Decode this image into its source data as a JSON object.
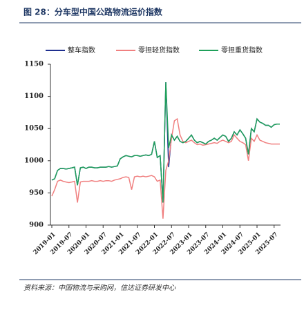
{
  "chart_data": {
    "type": "line",
    "title": "图 28：分车型中国公路物流运价指数",
    "source": "资料来源：中国物流与采购网，信达证券研发中心",
    "categories": [
      "2019-01",
      null,
      null,
      null,
      null,
      null,
      "2019-07",
      null,
      null,
      null,
      null,
      null,
      "2020-01",
      null,
      null,
      null,
      null,
      null,
      "2020-07",
      null,
      null,
      null,
      null,
      null,
      "2021-01",
      null,
      null,
      null,
      null,
      null,
      "2021-07",
      null,
      null,
      null,
      null,
      null,
      "2022-01",
      null,
      null,
      null,
      null,
      null,
      "2022-07",
      null,
      null,
      null,
      null,
      null,
      "2023-01",
      null,
      null,
      null,
      null,
      null,
      "2023-07",
      null,
      null,
      null,
      null,
      null,
      "2024-01",
      null,
      null,
      null,
      null,
      null,
      "2024-07",
      null,
      null,
      null,
      null,
      null,
      "2025-01",
      null,
      null,
      null,
      null,
      null,
      "2025-07",
      null,
      null
    ],
    "series": [
      {
        "name": "整车指数",
        "color": "#1f2f8f",
        "values": [
          970,
          972,
          985,
          988,
          988,
          987,
          988,
          989,
          990,
          962,
          989,
          990,
          988,
          990,
          990,
          989,
          989,
          990,
          990,
          990,
          991,
          990,
          991,
          992,
          1003,
          1006,
          1008,
          1007,
          1006,
          1008,
          1008,
          1007,
          1008,
          1009,
          1008,
          1010,
          1030,
          1005,
          1008,
          935,
          1122,
          990,
          1040,
          1032,
          1038,
          1030,
          1028,
          1030,
          1035,
          1040,
          1032,
          1028,
          1030,
          1028,
          1026,
          1030,
          1032,
          1035,
          1032,
          1036,
          1040,
          1038,
          1030,
          1035,
          1045,
          1040,
          1048,
          1042,
          1035,
          1010,
          1050,
          1045,
          1065,
          1060,
          1058,
          1055,
          1055,
          1052,
          1056,
          1057,
          1057
        ]
      },
      {
        "name": "零担轻货指数",
        "color": "#f08080",
        "values": [
          945,
          955,
          968,
          970,
          968,
          967,
          966,
          967,
          968,
          935,
          967,
          968,
          968,
          968,
          969,
          968,
          968,
          969,
          968,
          969,
          969,
          968,
          970,
          971,
          972,
          974,
          975,
          974,
          955,
          975,
          976,
          975,
          976,
          975,
          976,
          977,
          975,
          968,
          970,
          910,
          985,
          1000,
          1035,
          1062,
          1065,
          1040,
          1030,
          1028,
          1030,
          1032,
          1028,
          1025,
          1026,
          1024,
          1025,
          1026,
          1027,
          1028,
          1027,
          1030,
          1032,
          1030,
          1028,
          1030,
          1040,
          1035,
          1030,
          1028,
          1025,
          1000,
          1035,
          1030,
          1040,
          1032,
          1030,
          1028,
          1027,
          1026,
          1026,
          1026,
          1026
        ]
      },
      {
        "name": "零担重货指数",
        "color": "#1fa05a",
        "values": [
          970,
          972,
          985,
          988,
          988,
          987,
          988,
          989,
          990,
          962,
          989,
          990,
          988,
          990,
          990,
          989,
          989,
          990,
          990,
          990,
          991,
          990,
          991,
          992,
          1003,
          1006,
          1008,
          1007,
          1006,
          1008,
          1008,
          1007,
          1008,
          1009,
          1008,
          1010,
          1030,
          1005,
          1008,
          935,
          1122,
          1020,
          1040,
          1032,
          1038,
          1030,
          1028,
          1030,
          1035,
          1040,
          1032,
          1028,
          1030,
          1028,
          1026,
          1030,
          1032,
          1035,
          1032,
          1036,
          1040,
          1038,
          1030,
          1035,
          1045,
          1040,
          1048,
          1042,
          1035,
          1010,
          1050,
          1045,
          1065,
          1060,
          1058,
          1055,
          1055,
          1052,
          1056,
          1057,
          1057
        ]
      }
    ],
    "ylim": [
      900,
      1150
    ],
    "yticks": [
      900,
      950,
      1000,
      1050,
      1100,
      1150
    ],
    "grid": false,
    "legend": "top"
  }
}
